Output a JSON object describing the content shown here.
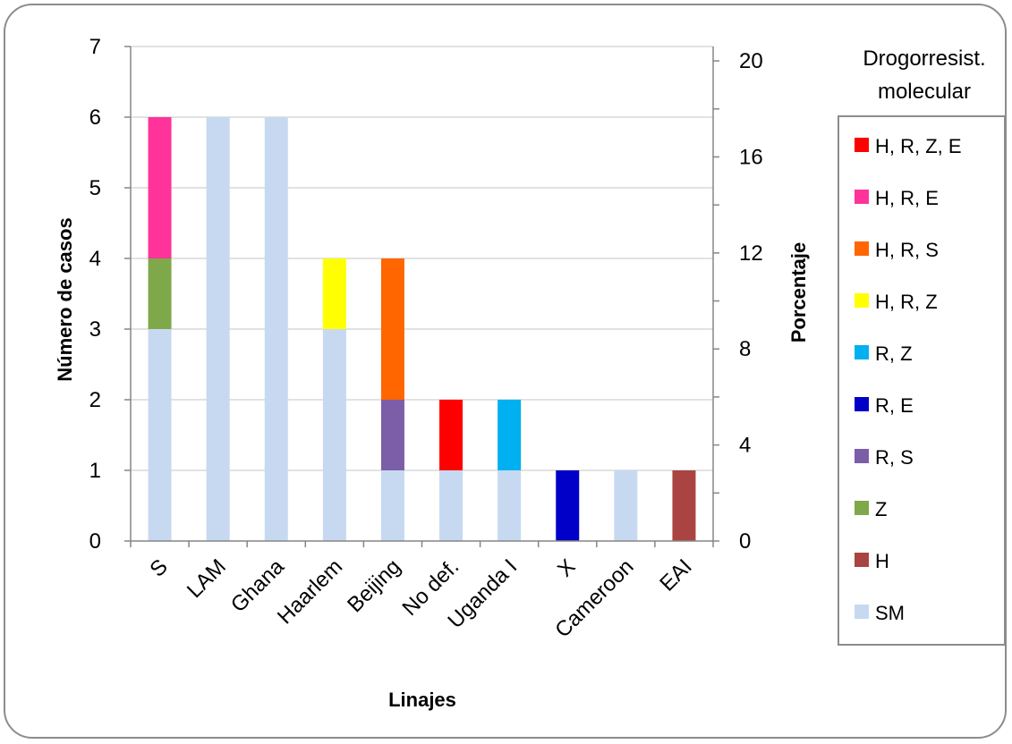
{
  "chart_data": {
    "type": "bar",
    "stacked": true,
    "title": "",
    "xlabel": "Linajes",
    "ylabel": "Número de casos",
    "y2label": "Porcentaje",
    "ylim": [
      0,
      7
    ],
    "yticks": [
      "0",
      "1",
      "2",
      "3",
      "4",
      "5",
      "6",
      "7"
    ],
    "y2lim": [
      0,
      20.6
    ],
    "y2ticks": [
      "0",
      "4",
      "8",
      "12",
      "16",
      "20"
    ],
    "grid": true,
    "legend_title": [
      "Drogorresist.",
      "molecular"
    ],
    "legend_position": "right",
    "categories": [
      "S",
      "LAM",
      "Ghana",
      "Haarlem",
      "Beijing",
      "No def.",
      "Uganda I",
      "X",
      "Cameroon",
      "EAI"
    ],
    "series": [
      {
        "name": "SM",
        "color": "#c6d9f1",
        "values": [
          3,
          6,
          6,
          3,
          1,
          1,
          1,
          0,
          1,
          0
        ]
      },
      {
        "name": "H",
        "color": "#a94442",
        "values": [
          0,
          0,
          0,
          0,
          0,
          0,
          0,
          0,
          0,
          1
        ]
      },
      {
        "name": "Z",
        "color": "#7fa84a",
        "values": [
          1,
          0,
          0,
          0,
          0,
          0,
          0,
          0,
          0,
          0
        ]
      },
      {
        "name": "R, S",
        "color": "#7b5ea7",
        "values": [
          0,
          0,
          0,
          0,
          1,
          0,
          0,
          0,
          0,
          0
        ]
      },
      {
        "name": "R, E",
        "color": "#0000c8",
        "values": [
          0,
          0,
          0,
          0,
          0,
          0,
          0,
          1,
          0,
          0
        ]
      },
      {
        "name": "R, Z",
        "color": "#00b0f0",
        "values": [
          0,
          0,
          0,
          0,
          0,
          0,
          1,
          0,
          0,
          0
        ]
      },
      {
        "name": "H, R, Z",
        "color": "#ffff00",
        "values": [
          0,
          0,
          0,
          1,
          0,
          0,
          0,
          0,
          0,
          0
        ]
      },
      {
        "name": "H, R, S",
        "color": "#ff6600",
        "values": [
          0,
          0,
          0,
          0,
          2,
          0,
          0,
          0,
          0,
          0
        ]
      },
      {
        "name": "H, R, E",
        "color": "#ff3399",
        "values": [
          2,
          0,
          0,
          0,
          0,
          0,
          0,
          0,
          0,
          0
        ]
      },
      {
        "name": "H, R, Z, E",
        "color": "#ff0000",
        "values": [
          0,
          0,
          0,
          0,
          0,
          1,
          0,
          0,
          0,
          0
        ]
      }
    ],
    "legend_order": [
      "H, R, Z, E",
      "H, R, E",
      "H, R, S",
      "H, R, Z",
      "R, Z",
      "R, E",
      "R, S",
      "Z",
      "H",
      "SM"
    ]
  }
}
